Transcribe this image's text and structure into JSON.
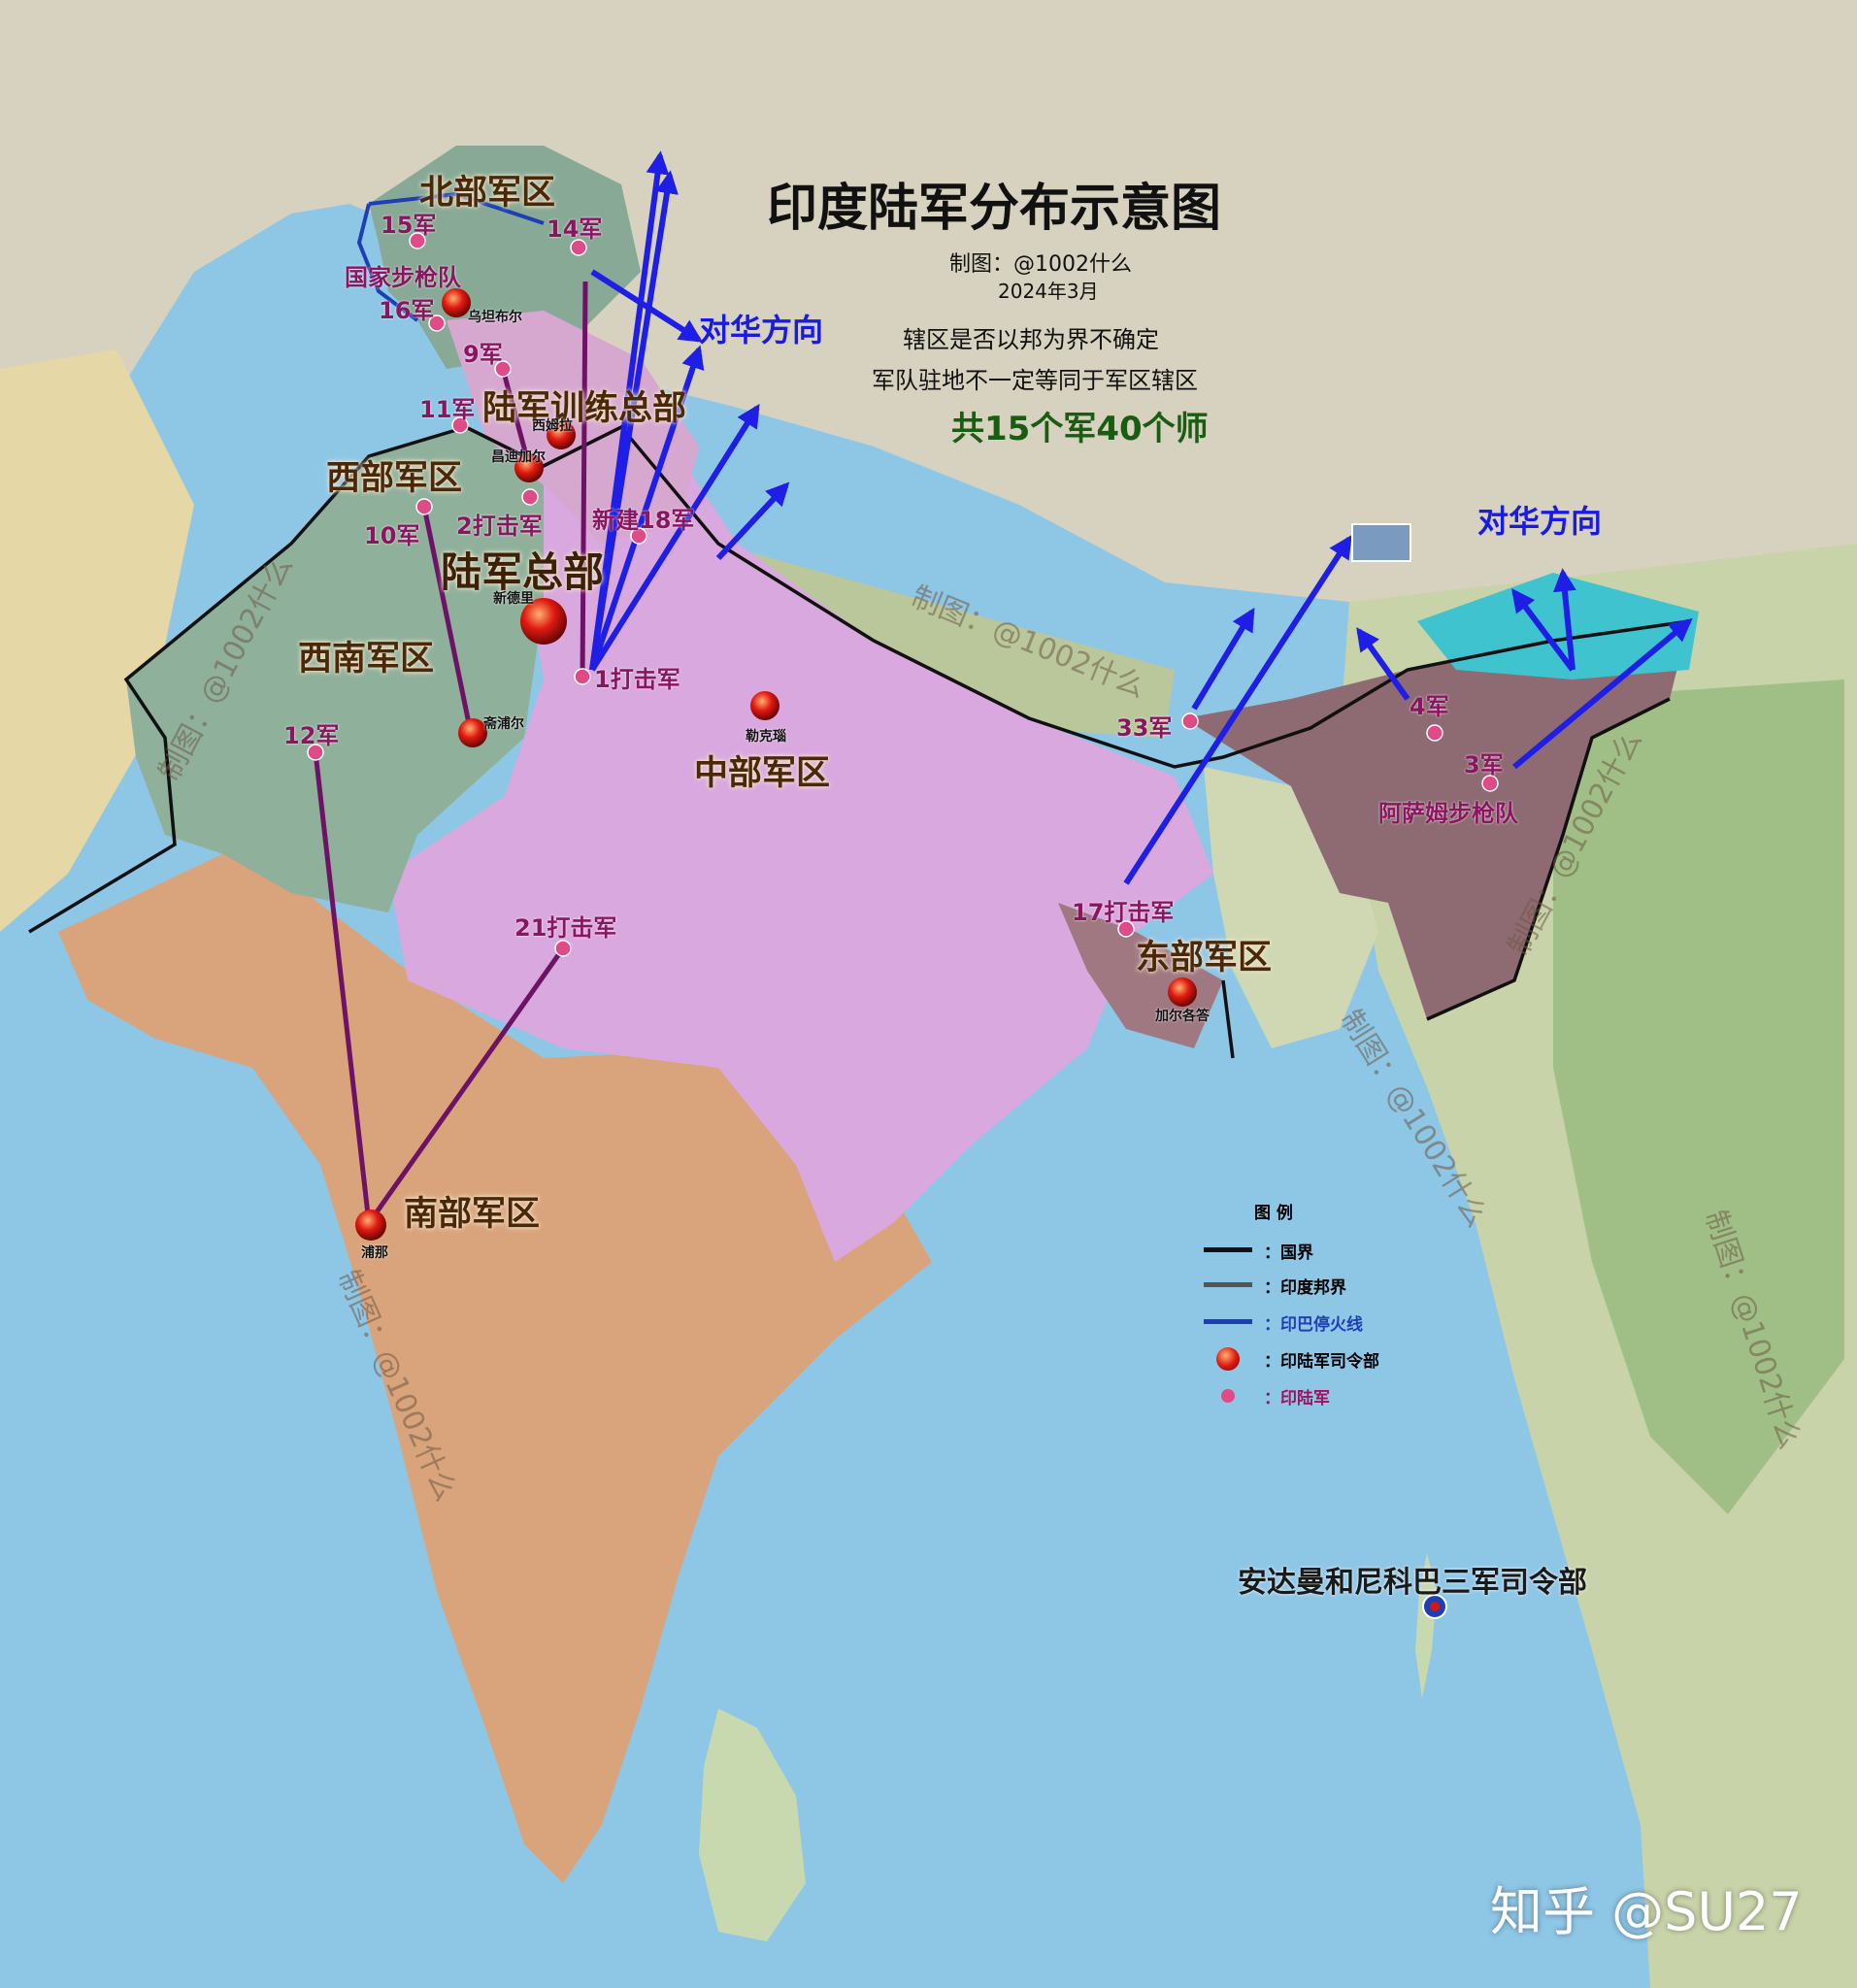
{
  "title": "印度陆军分布示意图",
  "author": "制图：@1002什么",
  "date": "2024年3月",
  "notes": [
    "辖区是否以邦为界不确定",
    "军队驻地不一定等同于军区辖区"
  ],
  "total": "共15个军40个师",
  "direction_label": "对华方向",
  "hq_labels": {
    "army_hq": "陆军总部",
    "training_hq": "陆军训练总部"
  },
  "commands": {
    "northern": "北部军区",
    "western": "西部军区",
    "southwestern": "西南军区",
    "central": "中部军区",
    "eastern": "东部军区",
    "southern": "南部军区",
    "andaman": "安达曼和尼科巴三军司令部"
  },
  "corps": {
    "c15": "15军",
    "c14": "14军",
    "c16": "16军",
    "c9": "9军",
    "c11": "11军",
    "c10": "10军",
    "c2": "2打击军",
    "c18": "新建18军",
    "c1": "1打击军",
    "c12": "12军",
    "c21": "21打击军",
    "c17": "17打击军",
    "c33": "33军",
    "c4": "4军",
    "c3": "3军",
    "rr": "国家步枪队",
    "ar": "阿萨姆步枪队"
  },
  "cities": {
    "udhampur": "乌坦布尔",
    "shimla": "西姆拉",
    "chandimandir": "昌迪加尔",
    "newdelhi": "新德里",
    "jaipur": "斋浦尔",
    "lucknow": "勒克瑙",
    "kolkata": "加尔各答",
    "pune": "浦那"
  },
  "watermark": "制图：@1002什么",
  "legend": {
    "title": "图 例",
    "items": [
      {
        "label": "：国界",
        "color": "#111111",
        "kind": "line"
      },
      {
        "label": "：印度邦界",
        "color": "#555555",
        "kind": "line"
      },
      {
        "label": "：印巴停火线",
        "color": "#1e3fb4",
        "kind": "line"
      },
      {
        "label": "：印陆军司令部",
        "color": "#d01818",
        "kind": "hq"
      },
      {
        "label": "：印陆军",
        "color": "#e04a86",
        "kind": "dot"
      }
    ]
  },
  "credit": "知乎 @SU27"
}
